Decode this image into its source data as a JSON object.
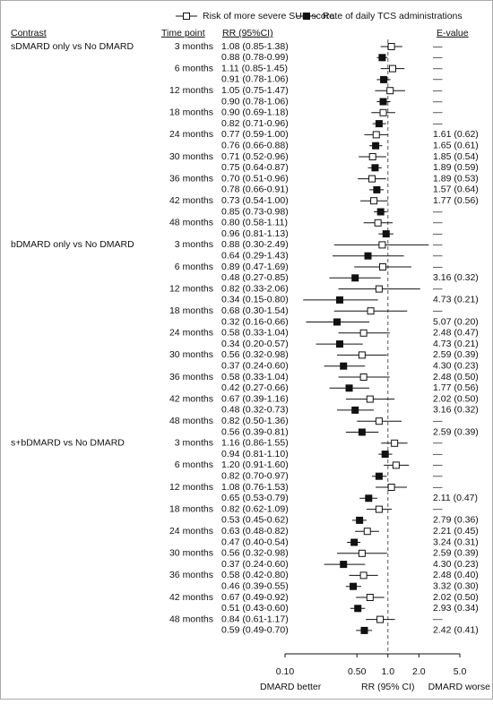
{
  "chart_data": {
    "type": "forest",
    "headers": {
      "contrast": "Contrast",
      "time_point": "Time point",
      "rr": "RR (95%CI)",
      "evalue": "E-value"
    },
    "series": [
      {
        "name": "Risk of more severe SUN score",
        "marker": "open",
        "color": "#111111"
      },
      {
        "name": "Rate of daily TCS administrations",
        "marker": "filled",
        "color": "#111111"
      }
    ],
    "log_scale": true,
    "xlim": [
      0.1,
      5
    ],
    "xticks": [
      {
        "value": 0.1,
        "label": "0.10"
      },
      {
        "value": 0.5,
        "label": "0.50"
      },
      {
        "value": 1,
        "label": "1.0"
      },
      {
        "value": 2,
        "label": "2.0"
      },
      {
        "value": 5,
        "label": "5.0"
      }
    ],
    "reference_line": 1,
    "x_label_left": "DMARD better",
    "x_label": "RR (95% CI)",
    "x_label_right": "DMARD worse",
    "groups": [
      {
        "contrast": "sDMARD only vs No DMARD",
        "timepoints": [
          {
            "label": "3 months",
            "estimates": [
              {
                "text": "1.08 (0.85-1.38)",
                "value": 1.08,
                "lower": 0.85,
                "upper": 1.38,
                "evalue": "—"
              },
              {
                "text": "0.88 (0.78-0.99)",
                "value": 0.88,
                "lower": 0.78,
                "upper": 0.99,
                "evalue": "—"
              }
            ]
          },
          {
            "label": "6 months",
            "estimates": [
              {
                "text": "1.11 (0.85-1.45)",
                "value": 1.11,
                "lower": 0.85,
                "upper": 1.45,
                "evalue": "—"
              },
              {
                "text": "0.91 (0.78-1.06)",
                "value": 0.91,
                "lower": 0.78,
                "upper": 1.06,
                "evalue": "—"
              }
            ]
          },
          {
            "label": "12 months",
            "estimates": [
              {
                "text": "1.05 (0.75-1.47)",
                "value": 1.05,
                "lower": 0.75,
                "upper": 1.47,
                "evalue": "—"
              },
              {
                "text": "0.90 (0.78-1.06)",
                "value": 0.9,
                "lower": 0.78,
                "upper": 1.06,
                "evalue": "—"
              }
            ]
          },
          {
            "label": "18 months",
            "estimates": [
              {
                "text": "0.90 (0.69-1.18)",
                "value": 0.9,
                "lower": 0.69,
                "upper": 1.18,
                "evalue": "—"
              },
              {
                "text": "0.82 (0.71-0.96)",
                "value": 0.82,
                "lower": 0.71,
                "upper": 0.96,
                "evalue": "—"
              }
            ]
          },
          {
            "label": "24 months",
            "estimates": [
              {
                "text": "0.77 (0.59-1.00)",
                "value": 0.77,
                "lower": 0.59,
                "upper": 1.0,
                "evalue": "1.61 (0.62)"
              },
              {
                "text": "0.76 (0.66-0.88)",
                "value": 0.76,
                "lower": 0.66,
                "upper": 0.88,
                "evalue": "1.65 (0.61)"
              }
            ]
          },
          {
            "label": "30 months",
            "estimates": [
              {
                "text": "0.71 (0.52-0.96)",
                "value": 0.71,
                "lower": 0.52,
                "upper": 0.96,
                "evalue": "1.85 (0.54)"
              },
              {
                "text": "0.75 (0.64-0.87)",
                "value": 0.75,
                "lower": 0.64,
                "upper": 0.87,
                "evalue": "1.89 (0.59)"
              }
            ]
          },
          {
            "label": "36 months",
            "estimates": [
              {
                "text": "0.70 (0.51-0.96)",
                "value": 0.7,
                "lower": 0.51,
                "upper": 0.96,
                "evalue": "1.89 (0.53)"
              },
              {
                "text": "0.78 (0.66-0.91)",
                "value": 0.78,
                "lower": 0.66,
                "upper": 0.91,
                "evalue": "1.57 (0.64)"
              }
            ]
          },
          {
            "label": "42 months",
            "estimates": [
              {
                "text": "0.73 (0.54-1.00)",
                "value": 0.73,
                "lower": 0.54,
                "upper": 1.0,
                "evalue": "1.77 (0.56)"
              },
              {
                "text": "0.85 (0.73-0.98)",
                "value": 0.85,
                "lower": 0.73,
                "upper": 0.98,
                "evalue": "—"
              }
            ]
          },
          {
            "label": "48 months",
            "estimates": [
              {
                "text": "0.80 (0.58-1.11)",
                "value": 0.8,
                "lower": 0.58,
                "upper": 1.11,
                "evalue": "—"
              },
              {
                "text": "0.96 (0.81-1.13)",
                "value": 0.96,
                "lower": 0.81,
                "upper": 1.13,
                "evalue": "—"
              }
            ]
          }
        ]
      },
      {
        "contrast": "bDMARD only vs No DMARD",
        "timepoints": [
          {
            "label": "3 months",
            "estimates": [
              {
                "text": "0.88 (0.30-2.49)",
                "value": 0.88,
                "lower": 0.3,
                "upper": 2.49,
                "evalue": "—"
              },
              {
                "text": "0.64 (0.29-1.43)",
                "value": 0.64,
                "lower": 0.29,
                "upper": 1.43,
                "evalue": "—"
              }
            ]
          },
          {
            "label": "6 months",
            "estimates": [
              {
                "text": "0.89 (0.47-1.69)",
                "value": 0.89,
                "lower": 0.47,
                "upper": 1.69,
                "evalue": "—"
              },
              {
                "text": "0.48 (0.27-0.85)",
                "value": 0.48,
                "lower": 0.27,
                "upper": 0.85,
                "evalue": "3.16 (0.32)"
              }
            ]
          },
          {
            "label": "12 months",
            "estimates": [
              {
                "text": "0.82 (0.33-2.06)",
                "value": 0.82,
                "lower": 0.33,
                "upper": 2.06,
                "evalue": "—"
              },
              {
                "text": "0.34 (0.15-0.80)",
                "value": 0.34,
                "lower": 0.15,
                "upper": 0.8,
                "evalue": "4.73 (0.21)"
              }
            ]
          },
          {
            "label": "18 months",
            "estimates": [
              {
                "text": "0.68 (0.30-1.54)",
                "value": 0.68,
                "lower": 0.3,
                "upper": 1.54,
                "evalue": "—"
              },
              {
                "text": "0.32 (0.16-0.66)",
                "value": 0.32,
                "lower": 0.16,
                "upper": 0.66,
                "evalue": "5.07 (0.20)"
              }
            ]
          },
          {
            "label": "24 months",
            "estimates": [
              {
                "text": "0.58 (0.33-1.04)",
                "value": 0.58,
                "lower": 0.33,
                "upper": 1.04,
                "evalue": "2.48 (0.47)"
              },
              {
                "text": "0.34 (0.20-0.57)",
                "value": 0.34,
                "lower": 0.2,
                "upper": 0.57,
                "evalue": "4.73 (0.21)"
              }
            ]
          },
          {
            "label": "30 months",
            "estimates": [
              {
                "text": "0.56 (0.32-0.98)",
                "value": 0.56,
                "lower": 0.32,
                "upper": 0.98,
                "evalue": "2.59 (0.39)"
              },
              {
                "text": "0.37 (0.24-0.60)",
                "value": 0.37,
                "lower": 0.24,
                "upper": 0.6,
                "evalue": "4.30 (0.23)"
              }
            ]
          },
          {
            "label": "36 months",
            "estimates": [
              {
                "text": "0.58 (0.33-1.04)",
                "value": 0.58,
                "lower": 0.33,
                "upper": 1.04,
                "evalue": "2.48 (0.50)"
              },
              {
                "text": "0.42 (0.27-0.66)",
                "value": 0.42,
                "lower": 0.27,
                "upper": 0.66,
                "evalue": "1.77 (0.56)"
              }
            ]
          },
          {
            "label": "42 months",
            "estimates": [
              {
                "text": "0.67 (0.39-1.16)",
                "value": 0.67,
                "lower": 0.39,
                "upper": 1.16,
                "evalue": "2.02 (0.50)"
              },
              {
                "text": "0.48 (0.32-0.73)",
                "value": 0.48,
                "lower": 0.32,
                "upper": 0.73,
                "evalue": "3.16 (0.32)"
              }
            ]
          },
          {
            "label": "48 months",
            "estimates": [
              {
                "text": "0.82 (0.50-1.36)",
                "value": 0.82,
                "lower": 0.5,
                "upper": 1.36,
                "evalue": "—"
              },
              {
                "text": "0.56 (0.39-0.81)",
                "value": 0.56,
                "lower": 0.39,
                "upper": 0.81,
                "evalue": "2.59 (0.39)"
              }
            ]
          }
        ]
      },
      {
        "contrast": "s+bDMARD vs No DMARD",
        "timepoints": [
          {
            "label": "3 months",
            "estimates": [
              {
                "text": "1.16 (0.86-1.55)",
                "value": 1.16,
                "lower": 0.86,
                "upper": 1.55,
                "evalue": "—"
              },
              {
                "text": "0.94 (0.81-1.10)",
                "value": 0.94,
                "lower": 0.81,
                "upper": 1.1,
                "evalue": "—"
              }
            ]
          },
          {
            "label": "6 months",
            "estimates": [
              {
                "text": "1.20 (0.91-1.60)",
                "value": 1.2,
                "lower": 0.91,
                "upper": 1.6,
                "evalue": "—"
              },
              {
                "text": "0.82 (0.70-0.97)",
                "value": 0.82,
                "lower": 0.7,
                "upper": 0.97,
                "evalue": "—"
              }
            ]
          },
          {
            "label": "12 months",
            "estimates": [
              {
                "text": "1.08 (0.76-1.53)",
                "value": 1.08,
                "lower": 0.76,
                "upper": 1.53,
                "evalue": "—"
              },
              {
                "text": "0.65 (0.53-0.79)",
                "value": 0.65,
                "lower": 0.53,
                "upper": 0.79,
                "evalue": "2.11 (0.47)"
              }
            ]
          },
          {
            "label": "18 months",
            "estimates": [
              {
                "text": "0.82 (0.62-1.09)",
                "value": 0.82,
                "lower": 0.62,
                "upper": 1.09,
                "evalue": "—"
              },
              {
                "text": "0.53 (0.45-0.62)",
                "value": 0.53,
                "lower": 0.45,
                "upper": 0.62,
                "evalue": "2.79 (0.36)"
              }
            ]
          },
          {
            "label": "24 months",
            "estimates": [
              {
                "text": "0.63 (0.48-0.82)",
                "value": 0.63,
                "lower": 0.48,
                "upper": 0.82,
                "evalue": "2.21 (0.45)"
              },
              {
                "text": "0.47 (0.40-0.54)",
                "value": 0.47,
                "lower": 0.4,
                "upper": 0.54,
                "evalue": "3.24 (0.31)"
              }
            ]
          },
          {
            "label": "30 months",
            "estimates": [
              {
                "text": "0.56 (0.32-0.98)",
                "value": 0.56,
                "lower": 0.32,
                "upper": 0.98,
                "evalue": "2.59 (0.39)"
              },
              {
                "text": "0.37 (0.24-0.60)",
                "value": 0.37,
                "lower": 0.24,
                "upper": 0.6,
                "evalue": "4.30 (0.23)"
              }
            ]
          },
          {
            "label": "36 months",
            "estimates": [
              {
                "text": "0.58 (0.42-0.80)",
                "value": 0.58,
                "lower": 0.42,
                "upper": 0.8,
                "evalue": "2.48 (0.40)"
              },
              {
                "text": "0.46 (0.39-0.55)",
                "value": 0.46,
                "lower": 0.39,
                "upper": 0.55,
                "evalue": "3.32 (0.30)"
              }
            ]
          },
          {
            "label": "42 months",
            "estimates": [
              {
                "text": "0.67 (0.49-0.92)",
                "value": 0.67,
                "lower": 0.49,
                "upper": 0.92,
                "evalue": "2.02 (0.50)"
              },
              {
                "text": "0.51 (0.43-0.60)",
                "value": 0.51,
                "lower": 0.43,
                "upper": 0.6,
                "evalue": "2.93 (0.34)"
              }
            ]
          },
          {
            "label": "48 months",
            "estimates": [
              {
                "text": "0.84 (0.61-1.17)",
                "value": 0.84,
                "lower": 0.61,
                "upper": 1.17,
                "evalue": "—"
              },
              {
                "text": "0.59 (0.49-0.70)",
                "value": 0.59,
                "lower": 0.49,
                "upper": 0.7,
                "evalue": "2.42 (0.41)"
              }
            ]
          }
        ]
      }
    ]
  }
}
